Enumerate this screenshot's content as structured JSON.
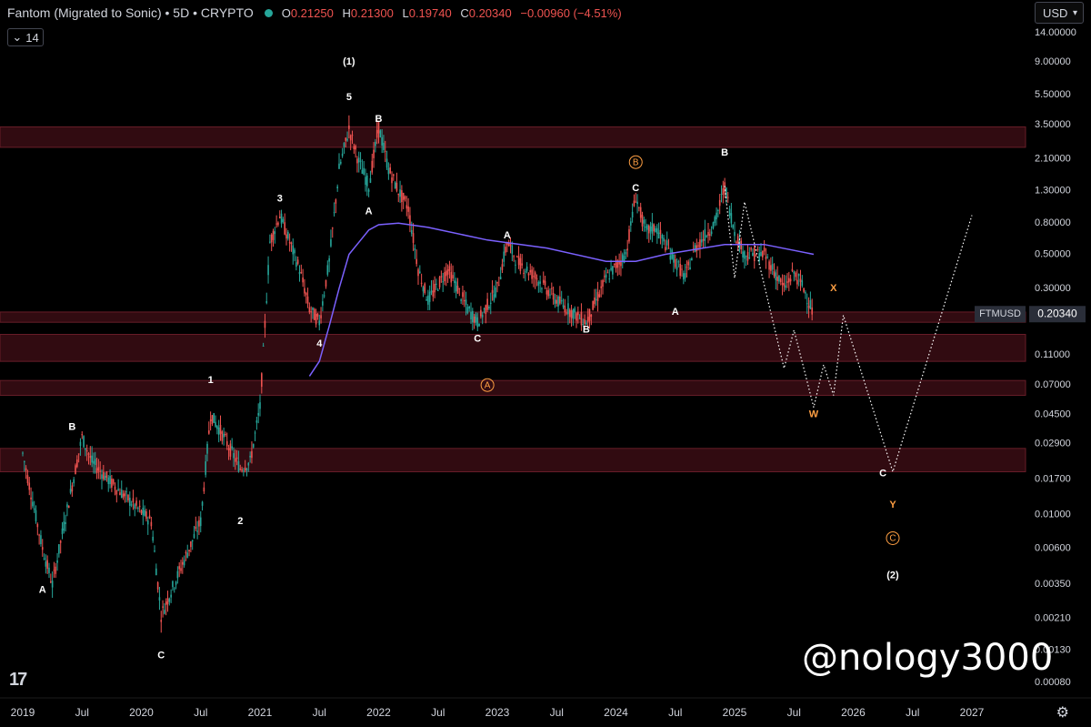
{
  "header": {
    "title": "Fantom (Migrated to Sonic) • 5D • CRYPTO",
    "ohlc": [
      {
        "k": "O",
        "v": "0.21250"
      },
      {
        "k": "H",
        "v": "0.21300"
      },
      {
        "k": "L",
        "v": "0.19740"
      },
      {
        "k": "C",
        "v": "0.20340"
      },
      {
        "k": "",
        "v": "−0.00960 (−4.51%)"
      }
    ],
    "indicator_value": "14",
    "currency": "USD"
  },
  "watermark": "@nology3000",
  "colors": {
    "background": "#000000",
    "candle_up": "#26a69a",
    "candle_down": "#ef5350",
    "ma": "#7b61ff",
    "zone": "#3a0d14",
    "zone_border": "#7a2330",
    "label_white": "#ffffff",
    "label_orange": "#ff9f43"
  },
  "chart_data": {
    "type": "line",
    "title": "Fantom (Migrated to Sonic) • 5D • CRYPTO",
    "scale": "log",
    "y_ticks": [
      "14.00000",
      "9.00000",
      "5.50000",
      "3.50000",
      "2.10000",
      "1.30000",
      "0.80000",
      "0.50000",
      "0.30000",
      "0.11000",
      "0.07000",
      "0.04500",
      "0.02900",
      "0.01700",
      "0.01000",
      "0.00600",
      "0.00350",
      "0.00210",
      "0.00130",
      "0.00080"
    ],
    "x_ticks": [
      "2019",
      "Jul",
      "2020",
      "Jul",
      "2021",
      "Jul",
      "2022",
      "Jul",
      "2023",
      "Jul",
      "2024",
      "Jul",
      "2025",
      "Jul",
      "2026",
      "Jul",
      "2027"
    ],
    "last_price": {
      "label": "FTMUSD",
      "value": "0.20340"
    },
    "price_series": [
      {
        "date": "2019-01",
        "price": 0.025
      },
      {
        "date": "2019-03",
        "price": 0.006
      },
      {
        "date": "2019-04",
        "price": 0.0035
      },
      {
        "date": "2019-05",
        "price": 0.0075
      },
      {
        "date": "2019-07",
        "price": 0.032
      },
      {
        "date": "2019-08",
        "price": 0.022
      },
      {
        "date": "2019-10",
        "price": 0.016
      },
      {
        "date": "2019-12",
        "price": 0.012
      },
      {
        "date": "2020-02",
        "price": 0.009
      },
      {
        "date": "2020-03",
        "price": 0.0022
      },
      {
        "date": "2020-05",
        "price": 0.0045
      },
      {
        "date": "2020-07",
        "price": 0.009
      },
      {
        "date": "2020-08",
        "price": 0.045
      },
      {
        "date": "2020-09",
        "price": 0.035
      },
      {
        "date": "2020-11",
        "price": 0.02
      },
      {
        "date": "2020-12",
        "price": 0.022
      },
      {
        "date": "2021-01",
        "price": 0.05
      },
      {
        "date": "2021-02",
        "price": 0.6
      },
      {
        "date": "2021-03",
        "price": 0.9
      },
      {
        "date": "2021-05",
        "price": 0.4
      },
      {
        "date": "2021-06",
        "price": 0.22
      },
      {
        "date": "2021-07",
        "price": 0.18
      },
      {
        "date": "2021-08",
        "price": 0.45
      },
      {
        "date": "2021-09",
        "price": 1.8
      },
      {
        "date": "2021-10",
        "price": 3.3
      },
      {
        "date": "2021-11",
        "price": 2.0
      },
      {
        "date": "2021-12",
        "price": 1.4
      },
      {
        "date": "2022-01",
        "price": 3.4
      },
      {
        "date": "2022-02",
        "price": 1.8
      },
      {
        "date": "2022-03",
        "price": 1.3
      },
      {
        "date": "2022-04",
        "price": 1.0
      },
      {
        "date": "2022-05",
        "price": 0.4
      },
      {
        "date": "2022-06",
        "price": 0.25
      },
      {
        "date": "2022-08",
        "price": 0.4
      },
      {
        "date": "2022-10",
        "price": 0.22
      },
      {
        "date": "2022-11",
        "price": 0.18
      },
      {
        "date": "2023-01",
        "price": 0.3
      },
      {
        "date": "2023-02",
        "price": 0.6
      },
      {
        "date": "2023-03",
        "price": 0.45
      },
      {
        "date": "2023-05",
        "price": 0.35
      },
      {
        "date": "2023-07",
        "price": 0.25
      },
      {
        "date": "2023-09",
        "price": 0.2
      },
      {
        "date": "2023-10",
        "price": 0.18
      },
      {
        "date": "2023-12",
        "price": 0.35
      },
      {
        "date": "2024-02",
        "price": 0.5
      },
      {
        "date": "2024-03",
        "price": 1.2
      },
      {
        "date": "2024-04",
        "price": 0.7
      },
      {
        "date": "2024-05",
        "price": 0.75
      },
      {
        "date": "2024-07",
        "price": 0.45
      },
      {
        "date": "2024-08",
        "price": 0.35
      },
      {
        "date": "2024-09",
        "price": 0.55
      },
      {
        "date": "2024-11",
        "price": 0.8
      },
      {
        "date": "2024-12",
        "price": 1.4
      },
      {
        "date": "2025-01",
        "price": 0.7
      },
      {
        "date": "2025-02",
        "price": 0.5
      },
      {
        "date": "2025-03",
        "price": 0.5
      },
      {
        "date": "2025-04",
        "price": 0.5
      },
      {
        "date": "2025-06",
        "price": 0.3
      },
      {
        "date": "2025-07",
        "price": 0.38
      },
      {
        "date": "2025-08",
        "price": 0.3
      },
      {
        "date": "2025-09",
        "price": 0.2034
      }
    ],
    "ma_series": [
      {
        "date": "2021-06",
        "price": 0.08
      },
      {
        "date": "2021-07",
        "price": 0.1
      },
      {
        "date": "2021-08",
        "price": 0.17
      },
      {
        "date": "2021-09",
        "price": 0.3
      },
      {
        "date": "2021-10",
        "price": 0.5
      },
      {
        "date": "2021-11",
        "price": 0.6
      },
      {
        "date": "2021-12",
        "price": 0.72
      },
      {
        "date": "2022-01",
        "price": 0.78
      },
      {
        "date": "2022-03",
        "price": 0.8
      },
      {
        "date": "2022-06",
        "price": 0.75
      },
      {
        "date": "2022-12",
        "price": 0.62
      },
      {
        "date": "2023-06",
        "price": 0.55
      },
      {
        "date": "2023-12",
        "price": 0.45
      },
      {
        "date": "2024-03",
        "price": 0.45
      },
      {
        "date": "2024-06",
        "price": 0.5
      },
      {
        "date": "2024-12",
        "price": 0.58
      },
      {
        "date": "2025-04",
        "price": 0.58
      },
      {
        "date": "2025-09",
        "price": 0.5
      }
    ],
    "projection_primary": [
      {
        "date": "2024-12",
        "price": 1.4
      },
      {
        "date": "2025-01",
        "price": 0.35
      },
      {
        "date": "2025-02",
        "price": 1.1
      },
      {
        "date": "2025-06",
        "price": 0.09
      },
      {
        "date": "2025-07",
        "price": 0.16
      },
      {
        "date": "2025-08",
        "price": 0.09
      },
      {
        "date": "2025-09",
        "price": 0.05
      },
      {
        "date": "2025-10",
        "price": 0.095
      },
      {
        "date": "2025-11",
        "price": 0.06
      },
      {
        "date": "2025-12",
        "price": 0.2
      },
      {
        "date": "2026-05",
        "price": 0.019
      },
      {
        "date": "2027-01",
        "price": 0.9
      }
    ],
    "zones": [
      {
        "low": 2.5,
        "high": 3.4
      },
      {
        "low": 0.18,
        "high": 0.21
      },
      {
        "low": 0.1,
        "high": 0.15
      },
      {
        "low": 0.06,
        "high": 0.075
      },
      {
        "low": 0.019,
        "high": 0.027
      }
    ],
    "wave_labels": [
      {
        "text": "A",
        "date": "2019-03",
        "price": 0.0032,
        "color": "white"
      },
      {
        "text": "B",
        "date": "2019-06",
        "price": 0.037,
        "color": "white"
      },
      {
        "text": "C",
        "date": "2020-03",
        "price": 0.0012,
        "color": "white"
      },
      {
        "text": "1",
        "date": "2020-08",
        "price": 0.075,
        "color": "white"
      },
      {
        "text": "2",
        "date": "2020-11",
        "price": 0.009,
        "color": "white"
      },
      {
        "text": "3",
        "date": "2021-03",
        "price": 1.15,
        "color": "white"
      },
      {
        "text": "4",
        "date": "2021-07",
        "price": 0.13,
        "color": "white"
      },
      {
        "text": "5",
        "date": "2021-10",
        "price": 5.3,
        "color": "white"
      },
      {
        "text": "(1)",
        "date": "2021-10",
        "price": 9.0,
        "color": "white"
      },
      {
        "text": "B",
        "date": "2022-01",
        "price": 3.8,
        "color": "white"
      },
      {
        "text": "A",
        "date": "2021-12",
        "price": 0.95,
        "color": "white"
      },
      {
        "text": "C",
        "date": "2022-11",
        "price": 0.14,
        "color": "white"
      },
      {
        "text": "A",
        "date": "2023-02",
        "price": 0.66,
        "color": "white"
      },
      {
        "text": "B",
        "date": "2023-10",
        "price": 0.16,
        "color": "white"
      },
      {
        "text": "C",
        "date": "2024-03",
        "price": 1.35,
        "color": "white"
      },
      {
        "text": "B",
        "date": "2024-12",
        "price": 2.3,
        "color": "white"
      },
      {
        "text": "A",
        "date": "2024-07",
        "price": 0.21,
        "color": "white"
      },
      {
        "text": "X",
        "date": "2025-11",
        "price": 0.3,
        "color": "orange"
      },
      {
        "text": "W",
        "date": "2025-09",
        "price": 0.045,
        "color": "orange"
      },
      {
        "text": "C",
        "date": "2026-04",
        "price": 0.0185,
        "color": "white"
      },
      {
        "text": "Y",
        "date": "2026-05",
        "price": 0.0115,
        "color": "orange"
      },
      {
        "text": "(2)",
        "date": "2026-05",
        "price": 0.004,
        "color": "white"
      }
    ],
    "circled_labels": [
      {
        "text": "A",
        "date": "2022-12",
        "price": 0.07,
        "color": "orange"
      },
      {
        "text": "B",
        "date": "2024-03",
        "price": 2.0,
        "color": "orange"
      },
      {
        "text": "C",
        "date": "2026-05",
        "price": 0.007,
        "color": "orange"
      }
    ]
  }
}
